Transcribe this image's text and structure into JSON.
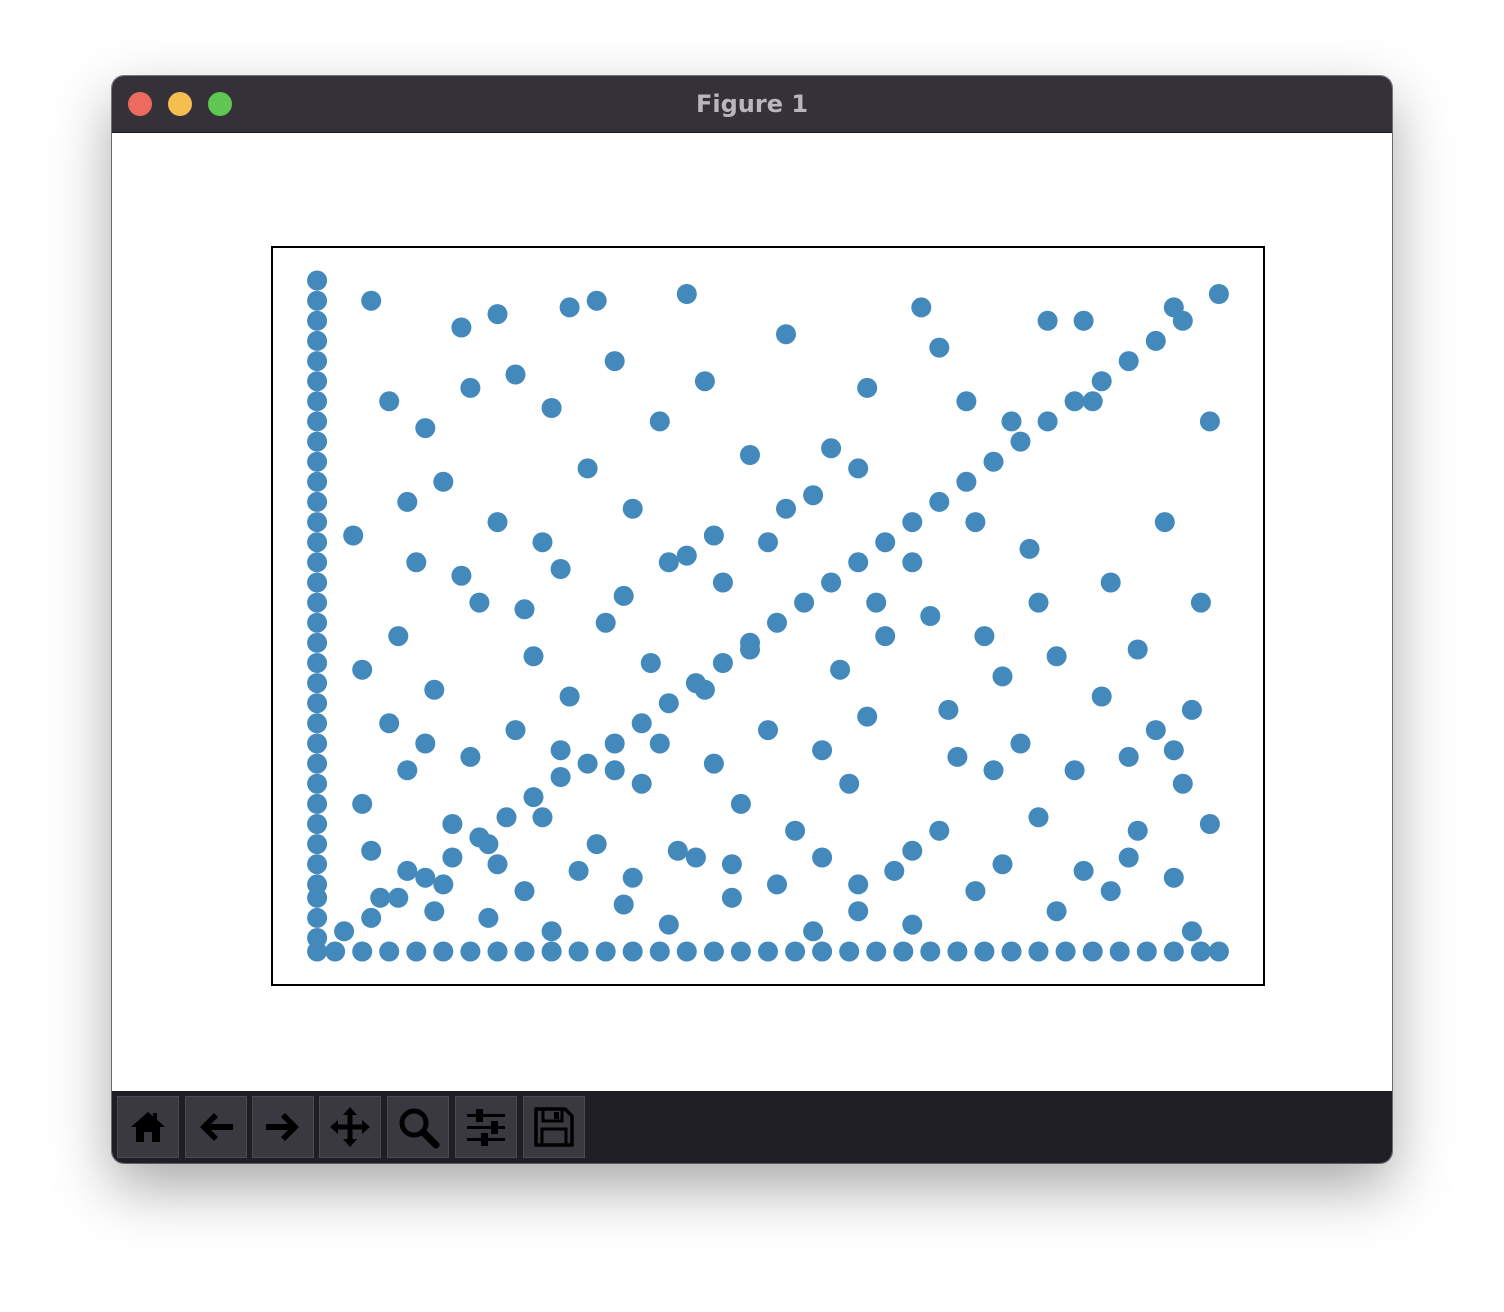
{
  "window": {
    "title": "Figure 1"
  },
  "toolbar": {
    "buttons": [
      {
        "name": "home-button",
        "icon": "home-icon"
      },
      {
        "name": "back-button",
        "icon": "arrow-left-icon"
      },
      {
        "name": "forward-button",
        "icon": "arrow-right-icon"
      },
      {
        "name": "pan-button",
        "icon": "move-icon"
      },
      {
        "name": "zoom-button",
        "icon": "magnifier-icon"
      },
      {
        "name": "configure-subplots-button",
        "icon": "sliders-icon"
      },
      {
        "name": "save-button",
        "icon": "floppy-disk-icon"
      }
    ]
  },
  "colors": {
    "marker": "#4389bc",
    "titlebar": "#343238",
    "toolbar": "#1f1e25"
  },
  "chart_data": {
    "type": "scatter",
    "title": "",
    "xlabel": "",
    "ylabel": "",
    "xlim": [
      -0.05,
      1.05
    ],
    "ylim": [
      -0.05,
      1.05
    ],
    "ticks_visible": false,
    "grid": false,
    "series": [
      {
        "marker_color": "#4389bc",
        "points": [
          [
            0.0,
            0.0
          ],
          [
            0.0,
            0.02
          ],
          [
            0.0,
            0.05
          ],
          [
            0.0,
            0.08
          ],
          [
            0.0,
            0.1
          ],
          [
            0.0,
            0.13
          ],
          [
            0.0,
            0.16
          ],
          [
            0.0,
            0.19
          ],
          [
            0.0,
            0.22
          ],
          [
            0.0,
            0.25
          ],
          [
            0.0,
            0.28
          ],
          [
            0.0,
            0.31
          ],
          [
            0.0,
            0.34
          ],
          [
            0.0,
            0.37
          ],
          [
            0.0,
            0.4
          ],
          [
            0.0,
            0.43
          ],
          [
            0.0,
            0.46
          ],
          [
            0.0,
            0.49
          ],
          [
            0.0,
            0.52
          ],
          [
            0.0,
            0.55
          ],
          [
            0.0,
            0.58
          ],
          [
            0.0,
            0.61
          ],
          [
            0.0,
            0.64
          ],
          [
            0.0,
            0.67
          ],
          [
            0.0,
            0.7
          ],
          [
            0.0,
            0.73
          ],
          [
            0.0,
            0.76
          ],
          [
            0.0,
            0.79
          ],
          [
            0.0,
            0.82
          ],
          [
            0.0,
            0.85
          ],
          [
            0.0,
            0.88
          ],
          [
            0.0,
            0.91
          ],
          [
            0.0,
            0.94
          ],
          [
            0.0,
            0.97
          ],
          [
            0.0,
            1.0
          ],
          [
            0.02,
            0.0
          ],
          [
            0.05,
            0.0
          ],
          [
            0.08,
            0.0
          ],
          [
            0.11,
            0.0
          ],
          [
            0.14,
            0.0
          ],
          [
            0.17,
            0.0
          ],
          [
            0.2,
            0.0
          ],
          [
            0.23,
            0.0
          ],
          [
            0.26,
            0.0
          ],
          [
            0.29,
            0.0
          ],
          [
            0.32,
            0.0
          ],
          [
            0.35,
            0.0
          ],
          [
            0.38,
            0.0
          ],
          [
            0.41,
            0.0
          ],
          [
            0.44,
            0.0
          ],
          [
            0.47,
            0.0
          ],
          [
            0.5,
            0.0
          ],
          [
            0.53,
            0.0
          ],
          [
            0.56,
            0.0
          ],
          [
            0.59,
            0.0
          ],
          [
            0.62,
            0.0
          ],
          [
            0.65,
            0.0
          ],
          [
            0.68,
            0.0
          ],
          [
            0.71,
            0.0
          ],
          [
            0.74,
            0.0
          ],
          [
            0.77,
            0.0
          ],
          [
            0.8,
            0.0
          ],
          [
            0.83,
            0.0
          ],
          [
            0.86,
            0.0
          ],
          [
            0.89,
            0.0
          ],
          [
            0.92,
            0.0
          ],
          [
            0.95,
            0.0
          ],
          [
            0.98,
            0.0
          ],
          [
            1.0,
            0.0
          ],
          [
            0.03,
            0.03
          ],
          [
            0.06,
            0.05
          ],
          [
            0.09,
            0.08
          ],
          [
            0.12,
            0.11
          ],
          [
            0.15,
            0.14
          ],
          [
            0.18,
            0.17
          ],
          [
            0.21,
            0.2
          ],
          [
            0.24,
            0.23
          ],
          [
            0.27,
            0.26
          ],
          [
            0.3,
            0.28
          ],
          [
            0.33,
            0.31
          ],
          [
            0.36,
            0.34
          ],
          [
            0.39,
            0.37
          ],
          [
            0.42,
            0.4
          ],
          [
            0.45,
            0.43
          ],
          [
            0.48,
            0.46
          ],
          [
            0.51,
            0.49
          ],
          [
            0.54,
            0.52
          ],
          [
            0.57,
            0.55
          ],
          [
            0.6,
            0.58
          ],
          [
            0.63,
            0.61
          ],
          [
            0.66,
            0.64
          ],
          [
            0.69,
            0.67
          ],
          [
            0.72,
            0.7
          ],
          [
            0.75,
            0.73
          ],
          [
            0.78,
            0.76
          ],
          [
            0.81,
            0.79
          ],
          [
            0.84,
            0.82
          ],
          [
            0.87,
            0.85
          ],
          [
            0.9,
            0.88
          ],
          [
            0.93,
            0.91
          ],
          [
            0.96,
            0.94
          ],
          [
            1.0,
            0.98
          ],
          [
            0.06,
            0.97
          ],
          [
            0.16,
            0.93
          ],
          [
            0.2,
            0.95
          ],
          [
            0.28,
            0.96
          ],
          [
            0.31,
            0.97
          ],
          [
            0.41,
            0.98
          ],
          [
            0.52,
            0.92
          ],
          [
            0.67,
            0.96
          ],
          [
            0.69,
            0.9
          ],
          [
            0.81,
            0.94
          ],
          [
            0.85,
            0.94
          ],
          [
            0.95,
            0.96
          ],
          [
            0.99,
            0.79
          ],
          [
            0.08,
            0.82
          ],
          [
            0.12,
            0.78
          ],
          [
            0.17,
            0.84
          ],
          [
            0.22,
            0.86
          ],
          [
            0.26,
            0.81
          ],
          [
            0.33,
            0.88
          ],
          [
            0.38,
            0.79
          ],
          [
            0.43,
            0.85
          ],
          [
            0.48,
            0.74
          ],
          [
            0.57,
            0.75
          ],
          [
            0.61,
            0.84
          ],
          [
            0.72,
            0.82
          ],
          [
            0.77,
            0.79
          ],
          [
            0.86,
            0.82
          ],
          [
            0.04,
            0.62
          ],
          [
            0.1,
            0.67
          ],
          [
            0.14,
            0.7
          ],
          [
            0.2,
            0.64
          ],
          [
            0.25,
            0.61
          ],
          [
            0.3,
            0.72
          ],
          [
            0.35,
            0.66
          ],
          [
            0.41,
            0.59
          ],
          [
            0.45,
            0.55
          ],
          [
            0.5,
            0.61
          ],
          [
            0.55,
            0.68
          ],
          [
            0.6,
            0.72
          ],
          [
            0.66,
            0.58
          ],
          [
            0.73,
            0.64
          ],
          [
            0.79,
            0.6
          ],
          [
            0.88,
            0.55
          ],
          [
            0.94,
            0.64
          ],
          [
            0.98,
            0.52
          ],
          [
            0.05,
            0.42
          ],
          [
            0.09,
            0.47
          ],
          [
            0.13,
            0.39
          ],
          [
            0.18,
            0.52
          ],
          [
            0.24,
            0.44
          ],
          [
            0.28,
            0.38
          ],
          [
            0.32,
            0.49
          ],
          [
            0.37,
            0.43
          ],
          [
            0.43,
            0.39
          ],
          [
            0.48,
            0.45
          ],
          [
            0.58,
            0.42
          ],
          [
            0.63,
            0.47
          ],
          [
            0.7,
            0.36
          ],
          [
            0.76,
            0.41
          ],
          [
            0.82,
            0.44
          ],
          [
            0.87,
            0.38
          ],
          [
            0.93,
            0.33
          ],
          [
            0.97,
            0.36
          ],
          [
            0.05,
            0.22
          ],
          [
            0.1,
            0.27
          ],
          [
            0.15,
            0.19
          ],
          [
            0.2,
            0.13
          ],
          [
            0.25,
            0.2
          ],
          [
            0.31,
            0.16
          ],
          [
            0.36,
            0.25
          ],
          [
            0.42,
            0.14
          ],
          [
            0.47,
            0.22
          ],
          [
            0.53,
            0.18
          ],
          [
            0.59,
            0.25
          ],
          [
            0.64,
            0.12
          ],
          [
            0.69,
            0.18
          ],
          [
            0.75,
            0.27
          ],
          [
            0.8,
            0.2
          ],
          [
            0.85,
            0.12
          ],
          [
            0.91,
            0.18
          ],
          [
            0.96,
            0.25
          ],
          [
            0.99,
            0.19
          ],
          [
            0.07,
            0.08
          ],
          [
            0.13,
            0.06
          ],
          [
            0.19,
            0.05
          ],
          [
            0.26,
            0.03
          ],
          [
            0.34,
            0.07
          ],
          [
            0.39,
            0.04
          ],
          [
            0.46,
            0.08
          ],
          [
            0.55,
            0.03
          ],
          [
            0.6,
            0.06
          ],
          [
            0.66,
            0.04
          ],
          [
            0.73,
            0.09
          ],
          [
            0.82,
            0.06
          ],
          [
            0.88,
            0.09
          ],
          [
            0.97,
            0.03
          ],
          [
            0.11,
            0.58
          ],
          [
            0.16,
            0.56
          ],
          [
            0.23,
            0.51
          ],
          [
            0.27,
            0.57
          ],
          [
            0.34,
            0.53
          ],
          [
            0.39,
            0.58
          ],
          [
            0.44,
            0.62
          ],
          [
            0.52,
            0.66
          ],
          [
            0.62,
            0.52
          ],
          [
            0.68,
            0.5
          ],
          [
            0.74,
            0.47
          ],
          [
            0.8,
            0.52
          ],
          [
            0.91,
            0.45
          ],
          [
            0.08,
            0.34
          ],
          [
            0.12,
            0.31
          ],
          [
            0.17,
            0.29
          ],
          [
            0.22,
            0.33
          ],
          [
            0.27,
            0.3
          ],
          [
            0.33,
            0.27
          ],
          [
            0.38,
            0.31
          ],
          [
            0.44,
            0.28
          ],
          [
            0.5,
            0.33
          ],
          [
            0.56,
            0.3
          ],
          [
            0.61,
            0.35
          ],
          [
            0.71,
            0.29
          ],
          [
            0.78,
            0.31
          ],
          [
            0.84,
            0.27
          ],
          [
            0.9,
            0.29
          ],
          [
            0.95,
            0.3
          ],
          [
            0.06,
            0.15
          ],
          [
            0.1,
            0.12
          ],
          [
            0.14,
            0.1
          ],
          [
            0.19,
            0.16
          ],
          [
            0.23,
            0.09
          ],
          [
            0.29,
            0.12
          ],
          [
            0.35,
            0.11
          ],
          [
            0.4,
            0.15
          ],
          [
            0.46,
            0.13
          ],
          [
            0.51,
            0.1
          ],
          [
            0.56,
            0.14
          ],
          [
            0.6,
            0.1
          ],
          [
            0.66,
            0.15
          ],
          [
            0.76,
            0.13
          ],
          [
            0.9,
            0.14
          ],
          [
            0.95,
            0.11
          ]
        ]
      }
    ]
  }
}
